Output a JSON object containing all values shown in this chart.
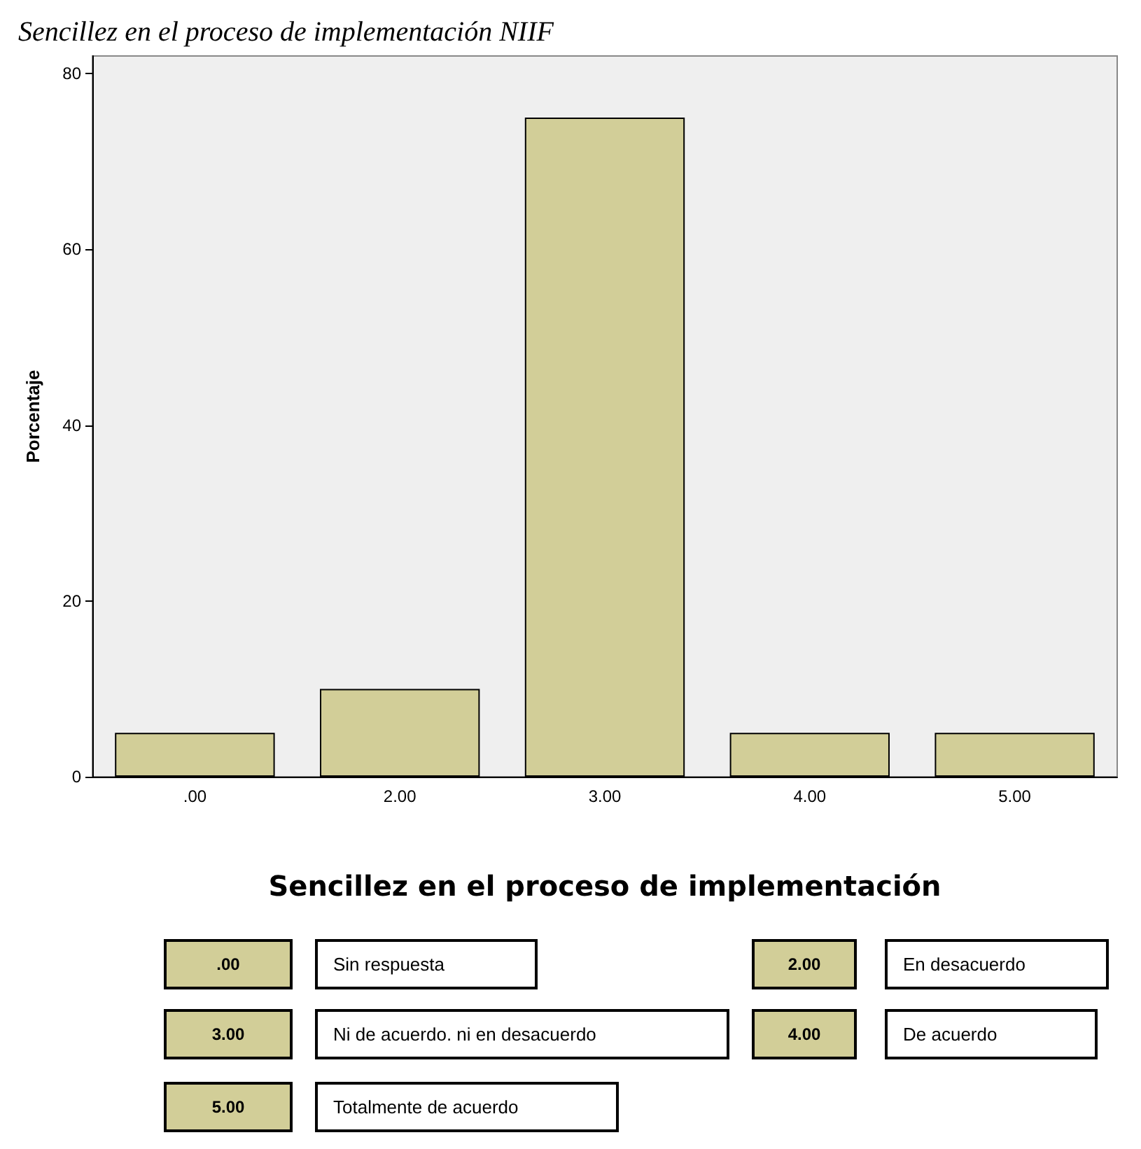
{
  "chart_data": {
    "type": "bar",
    "title": "Sencillez en el proceso de implementación NIIF",
    "xlabel": "Sencillez en el proceso de implementación",
    "ylabel": "Porcentaje",
    "categories": [
      ".00",
      "2.00",
      "3.00",
      "4.00",
      "5.00"
    ],
    "values": [
      5,
      10,
      75,
      5,
      5
    ],
    "color": "#d2ce98",
    "ylim": [
      0,
      82
    ],
    "yticks": [
      0,
      20,
      40,
      60,
      80
    ],
    "grid": false,
    "annotations": [
      ".00",
      "Sin respuesta",
      "2.00",
      "En desacuerdo",
      "3.00",
      "Ni de acuerdo. ni en desacuerdo",
      "4.00",
      "De acuerdo",
      "5.00",
      "Totalmente de acuerdo"
    ]
  }
}
